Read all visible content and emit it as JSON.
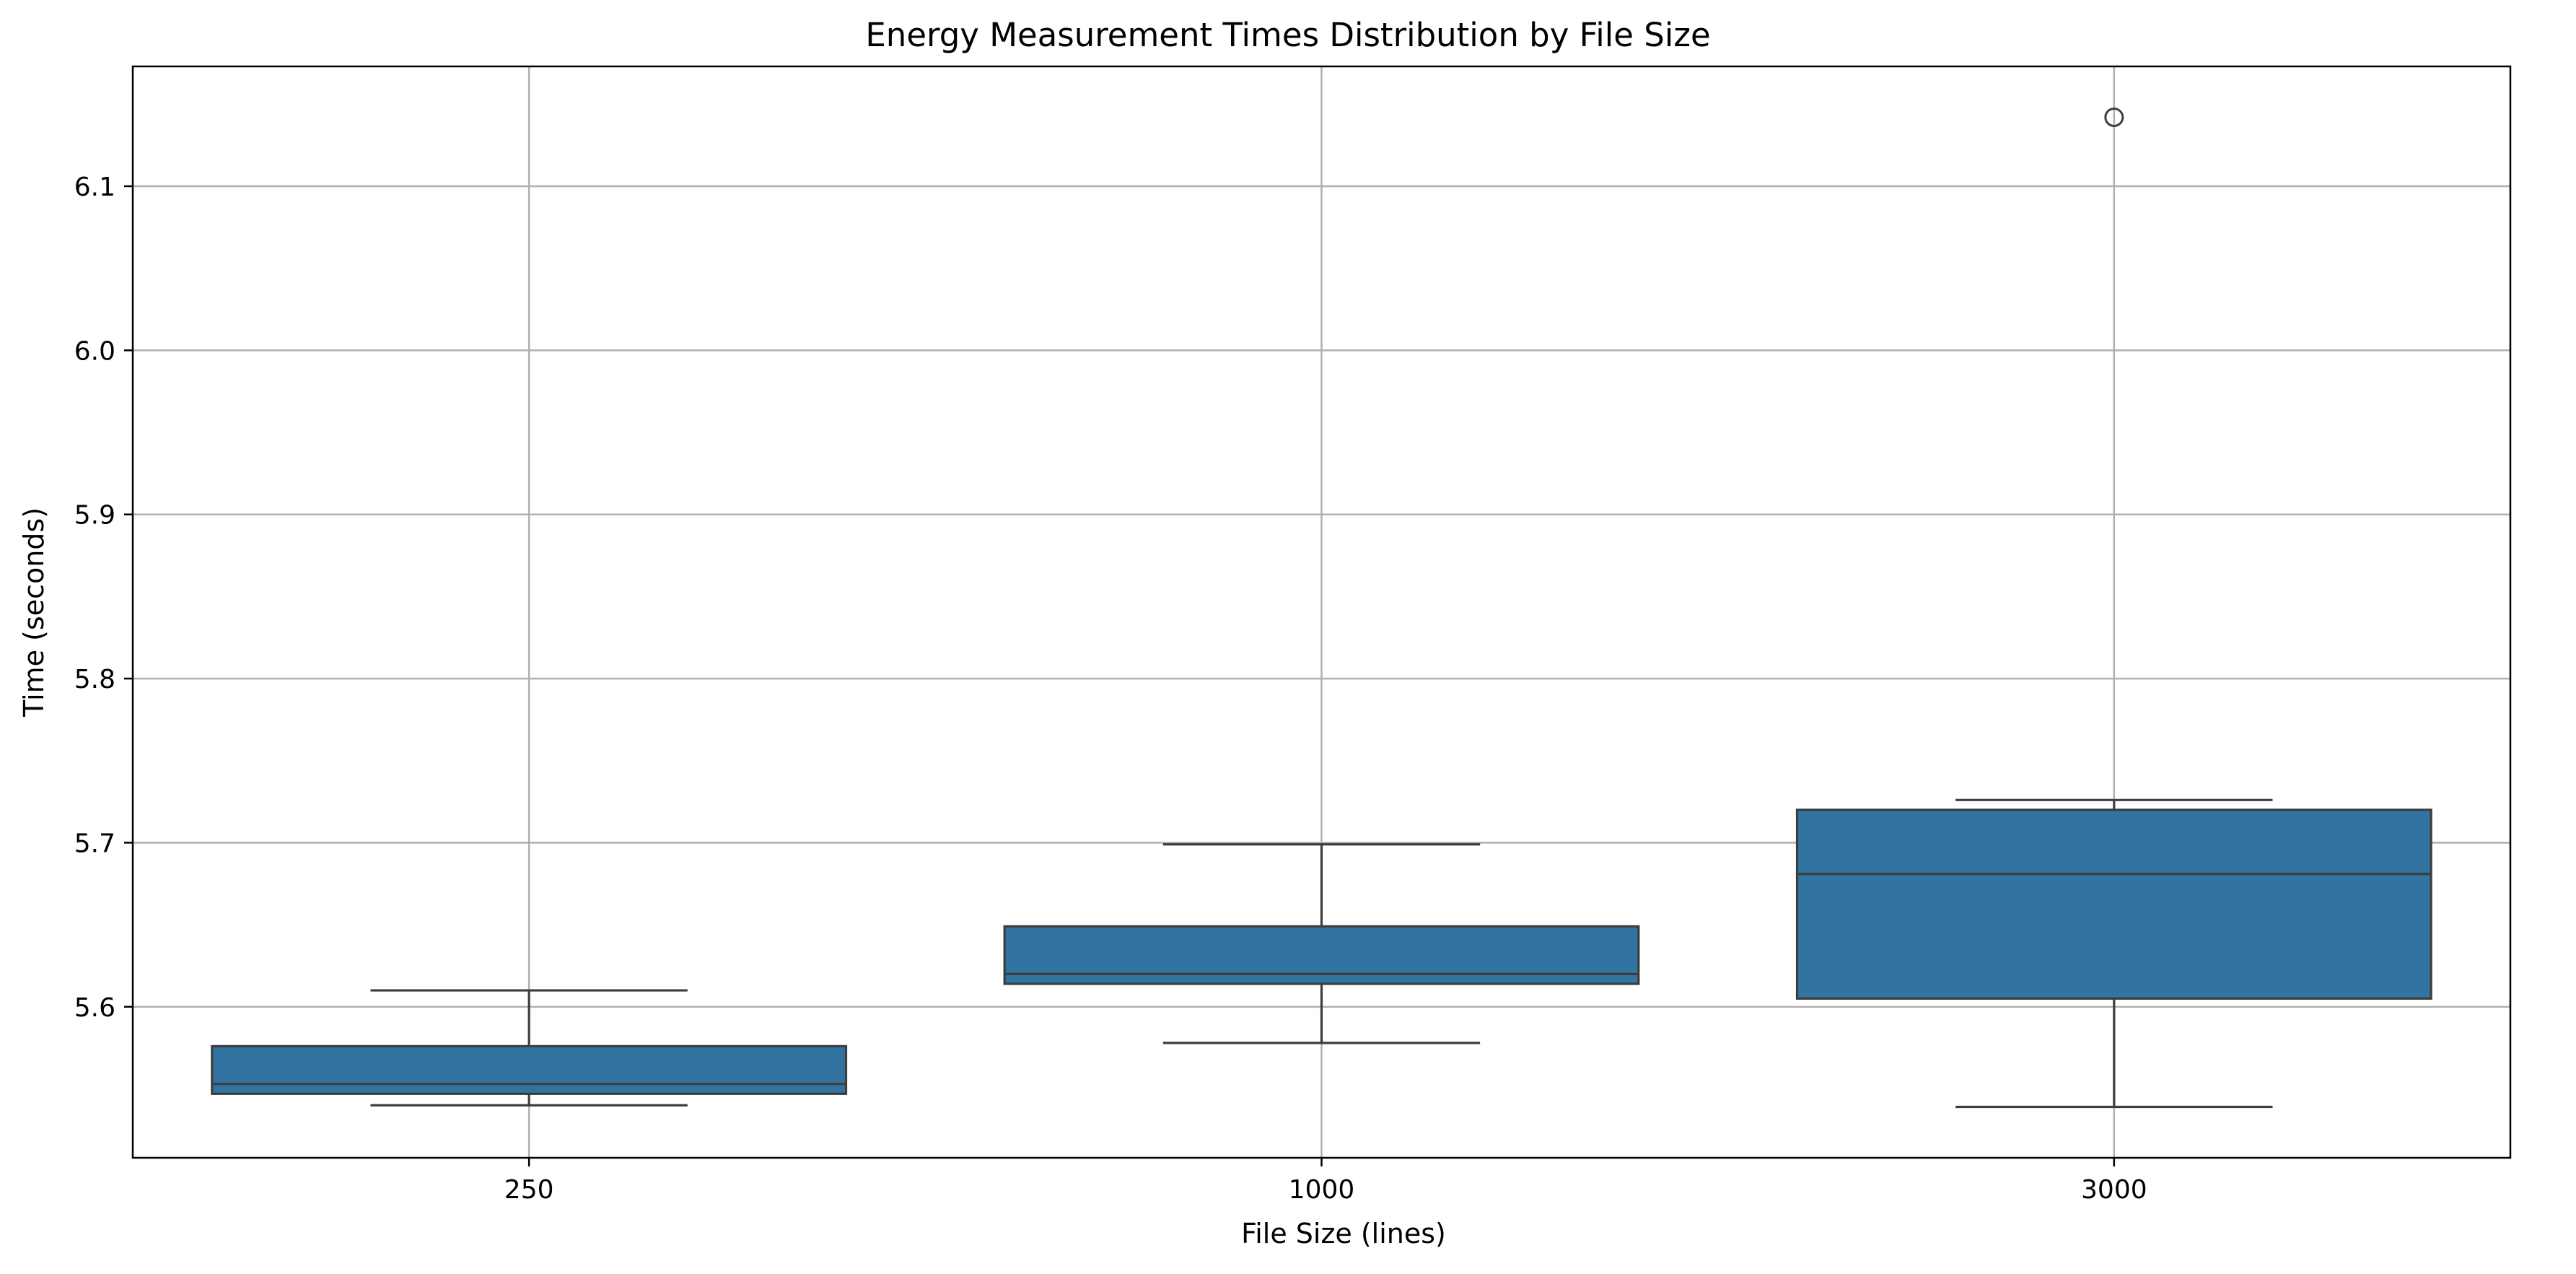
{
  "chart_data": {
    "type": "box",
    "title": "Energy Measurement Times Distribution by File Size",
    "xlabel": "File Size (lines)",
    "ylabel": "Time (seconds)",
    "categories": [
      "250",
      "1000",
      "3000"
    ],
    "ylim": [
      5.508,
      6.173
    ],
    "yticks": [
      5.6,
      5.7,
      5.8,
      5.9,
      6.0,
      6.1
    ],
    "ytick_labels": [
      "5.6",
      "5.7",
      "5.8",
      "5.9",
      "6.0",
      "6.1"
    ],
    "grid": true,
    "box_color": "#3274a1",
    "edge_color": "#3d3d3d",
    "boxes": [
      {
        "category": "250",
        "whisker_low": 5.54,
        "q1": 5.547,
        "median": 5.553,
        "q3": 5.576,
        "whisker_high": 5.61,
        "outliers": []
      },
      {
        "category": "1000",
        "whisker_low": 5.578,
        "q1": 5.614,
        "median": 5.62,
        "q3": 5.649,
        "whisker_high": 5.699,
        "outliers": []
      },
      {
        "category": "3000",
        "whisker_low": 5.539,
        "q1": 5.605,
        "median": 5.681,
        "q3": 5.72,
        "whisker_high": 5.726,
        "outliers": [
          6.142
        ]
      }
    ]
  }
}
